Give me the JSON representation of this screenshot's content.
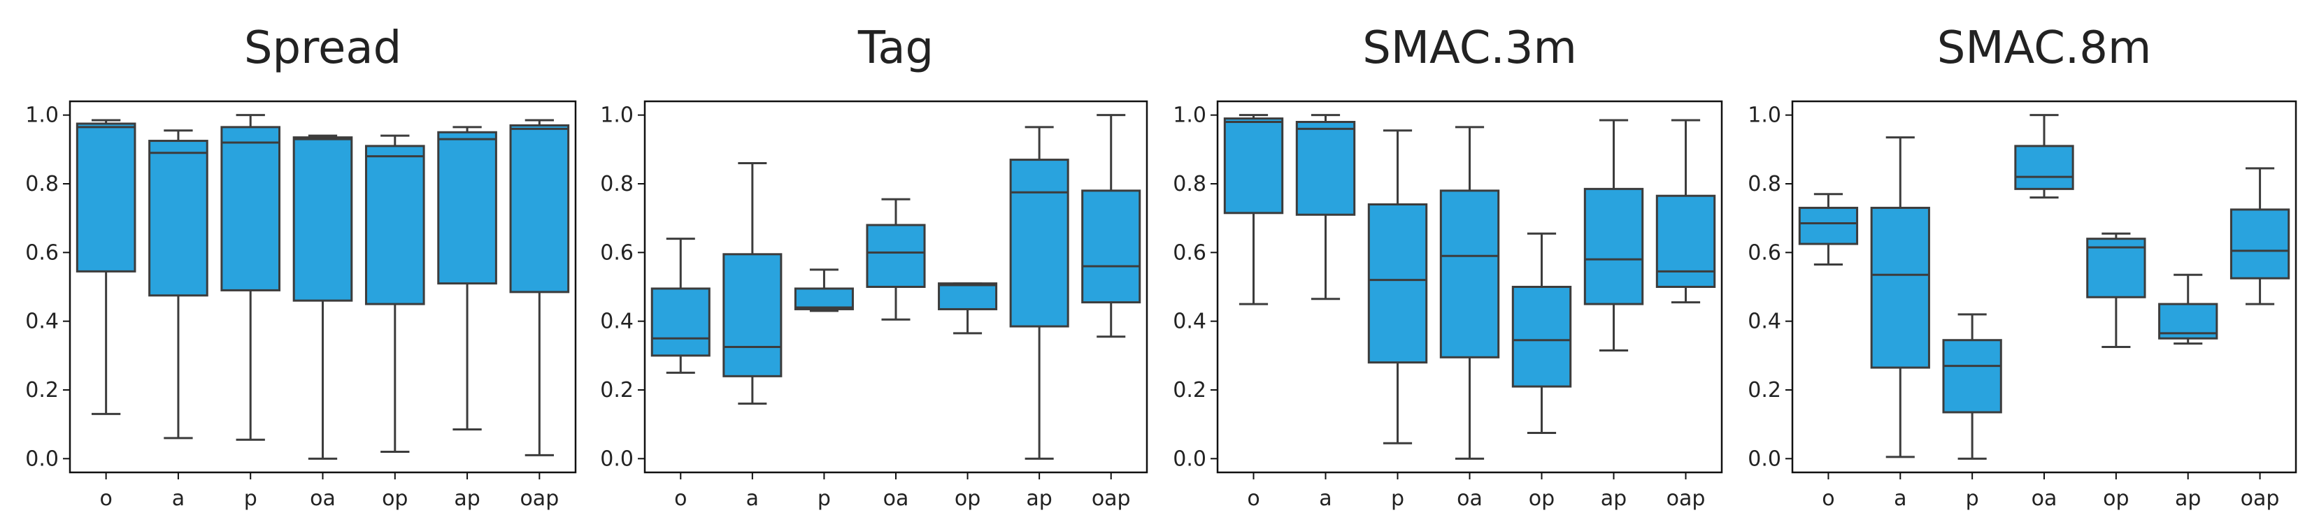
{
  "style": {
    "box_fill": "#29A3DE",
    "line_color": "#3c3c3c",
    "frame_color": "#111111"
  },
  "chart_data": [
    {
      "type": "box",
      "title": "Spread",
      "ylim": [
        -0.04,
        1.04
      ],
      "yticks": [
        "0.0",
        "0.2",
        "0.4",
        "0.6",
        "0.8",
        "1.0"
      ],
      "ytick_values": [
        0,
        0.2,
        0.4,
        0.6,
        0.8,
        1.0
      ],
      "categories": [
        "o",
        "a",
        "p",
        "oa",
        "op",
        "ap",
        "oap"
      ],
      "boxes": [
        {
          "whislo": 0.13,
          "q1": 0.545,
          "med": 0.965,
          "q3": 0.975,
          "whishi": 0.985
        },
        {
          "whislo": 0.06,
          "q1": 0.475,
          "med": 0.89,
          "q3": 0.925,
          "whishi": 0.955
        },
        {
          "whislo": 0.055,
          "q1": 0.49,
          "med": 0.92,
          "q3": 0.965,
          "whishi": 1.0
        },
        {
          "whislo": 0.0,
          "q1": 0.46,
          "med": 0.93,
          "q3": 0.935,
          "whishi": 0.94
        },
        {
          "whislo": 0.02,
          "q1": 0.45,
          "med": 0.88,
          "q3": 0.91,
          "whishi": 0.94
        },
        {
          "whislo": 0.085,
          "q1": 0.51,
          "med": 0.93,
          "q3": 0.95,
          "whishi": 0.965
        },
        {
          "whislo": 0.01,
          "q1": 0.485,
          "med": 0.96,
          "q3": 0.97,
          "whishi": 0.985
        }
      ]
    },
    {
      "type": "box",
      "title": "Tag",
      "ylim": [
        -0.04,
        1.04
      ],
      "yticks": [
        "0.0",
        "0.2",
        "0.4",
        "0.6",
        "0.8",
        "1.0"
      ],
      "ytick_values": [
        0,
        0.2,
        0.4,
        0.6,
        0.8,
        1.0
      ],
      "categories": [
        "o",
        "a",
        "p",
        "oa",
        "op",
        "ap",
        "oap"
      ],
      "boxes": [
        {
          "whislo": 0.25,
          "q1": 0.3,
          "med": 0.35,
          "q3": 0.495,
          "whishi": 0.64
        },
        {
          "whislo": 0.16,
          "q1": 0.24,
          "med": 0.325,
          "q3": 0.595,
          "whishi": 0.86
        },
        {
          "whislo": 0.43,
          "q1": 0.435,
          "med": 0.44,
          "q3": 0.495,
          "whishi": 0.55
        },
        {
          "whislo": 0.405,
          "q1": 0.5,
          "med": 0.6,
          "q3": 0.68,
          "whishi": 0.755
        },
        {
          "whislo": 0.365,
          "q1": 0.435,
          "med": 0.505,
          "q3": 0.51,
          "whishi": 0.51
        },
        {
          "whislo": 0.0,
          "q1": 0.385,
          "med": 0.775,
          "q3": 0.87,
          "whishi": 0.965
        },
        {
          "whislo": 0.355,
          "q1": 0.455,
          "med": 0.56,
          "q3": 0.78,
          "whishi": 1.0
        }
      ]
    },
    {
      "type": "box",
      "title": "SMAC.3m",
      "ylim": [
        -0.04,
        1.04
      ],
      "yticks": [
        "0.0",
        "0.2",
        "0.4",
        "0.6",
        "0.8",
        "1.0"
      ],
      "ytick_values": [
        0,
        0.2,
        0.4,
        0.6,
        0.8,
        1.0
      ],
      "categories": [
        "o",
        "a",
        "p",
        "oa",
        "op",
        "ap",
        "oap"
      ],
      "boxes": [
        {
          "whislo": 0.45,
          "q1": 0.715,
          "med": 0.98,
          "q3": 0.99,
          "whishi": 1.0
        },
        {
          "whislo": 0.465,
          "q1": 0.71,
          "med": 0.96,
          "q3": 0.98,
          "whishi": 1.0
        },
        {
          "whislo": 0.045,
          "q1": 0.28,
          "med": 0.52,
          "q3": 0.74,
          "whishi": 0.955
        },
        {
          "whislo": 0.0,
          "q1": 0.295,
          "med": 0.59,
          "q3": 0.78,
          "whishi": 0.965
        },
        {
          "whislo": 0.075,
          "q1": 0.21,
          "med": 0.345,
          "q3": 0.5,
          "whishi": 0.655
        },
        {
          "whislo": 0.315,
          "q1": 0.45,
          "med": 0.58,
          "q3": 0.785,
          "whishi": 0.985
        },
        {
          "whislo": 0.455,
          "q1": 0.5,
          "med": 0.545,
          "q3": 0.765,
          "whishi": 0.985
        }
      ]
    },
    {
      "type": "box",
      "title": "SMAC.8m",
      "ylim": [
        -0.04,
        1.04
      ],
      "yticks": [
        "0.0",
        "0.2",
        "0.4",
        "0.6",
        "0.8",
        "1.0"
      ],
      "ytick_values": [
        0,
        0.2,
        0.4,
        0.6,
        0.8,
        1.0
      ],
      "categories": [
        "o",
        "a",
        "p",
        "oa",
        "op",
        "ap",
        "oap"
      ],
      "boxes": [
        {
          "whislo": 0.565,
          "q1": 0.625,
          "med": 0.685,
          "q3": 0.73,
          "whishi": 0.77
        },
        {
          "whislo": 0.005,
          "q1": 0.265,
          "med": 0.535,
          "q3": 0.73,
          "whishi": 0.935
        },
        {
          "whislo": 0.0,
          "q1": 0.135,
          "med": 0.27,
          "q3": 0.345,
          "whishi": 0.42
        },
        {
          "whislo": 0.76,
          "q1": 0.785,
          "med": 0.82,
          "q3": 0.91,
          "whishi": 1.0
        },
        {
          "whislo": 0.325,
          "q1": 0.47,
          "med": 0.615,
          "q3": 0.64,
          "whishi": 0.655
        },
        {
          "whislo": 0.335,
          "q1": 0.35,
          "med": 0.365,
          "q3": 0.45,
          "whishi": 0.535
        },
        {
          "whislo": 0.45,
          "q1": 0.525,
          "med": 0.605,
          "q3": 0.725,
          "whishi": 0.845
        }
      ]
    }
  ]
}
